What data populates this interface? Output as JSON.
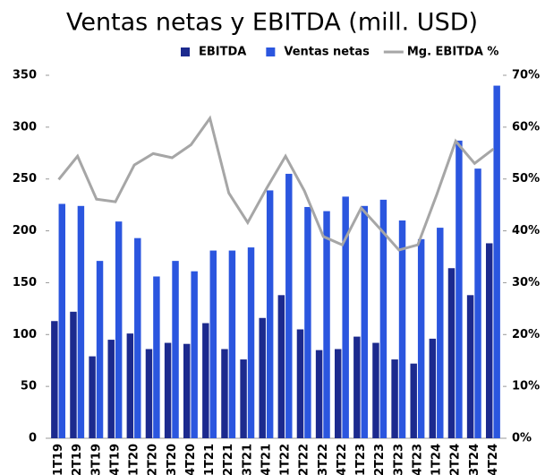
{
  "chart_data": {
    "type": "bar-line",
    "title": "Ventas netas y EBITDA (mill. USD)",
    "categories": [
      "1T19",
      "2T19",
      "3T19",
      "4T19",
      "1T20",
      "2T20",
      "3T20",
      "4T20",
      "1T21",
      "2T21",
      "3T21",
      "4T21",
      "1T22",
      "2T22",
      "3T22",
      "4T22",
      "1T23",
      "2T23",
      "3T23",
      "4T23",
      "1T24",
      "2T24",
      "3T24",
      "4T24"
    ],
    "series": [
      {
        "name": "EBITDA",
        "type": "bar",
        "color": "#1c2a8e",
        "values": [
          113,
          122,
          79,
          95,
          101,
          86,
          92,
          91,
          111,
          86,
          76,
          116,
          138,
          105,
          85,
          86,
          98,
          92,
          76,
          72,
          96,
          164,
          138,
          188
        ]
      },
      {
        "name": "Ventas netas",
        "type": "bar",
        "color": "#2b56df",
        "values": [
          226,
          224,
          171,
          209,
          193,
          156,
          171,
          161,
          181,
          181,
          184,
          239,
          255,
          223,
          219,
          233,
          224,
          230,
          210,
          192,
          203,
          287,
          260,
          340
        ]
      },
      {
        "name": "Mg. EBITDA %",
        "type": "line",
        "axis": "y2",
        "color": "#a6a6a6",
        "values": [
          49.9,
          54.4,
          46.1,
          45.6,
          52.7,
          54.9,
          54.1,
          56.6,
          61.7,
          47.3,
          41.6,
          48.2,
          54.4,
          47.7,
          38.9,
          37.3,
          44.4,
          40.4,
          36.3,
          37.3,
          47,
          57.3,
          53,
          55.8
        ]
      }
    ],
    "ylim": [
      0,
      350
    ],
    "yticks": [
      0,
      50,
      100,
      150,
      200,
      250,
      300,
      350
    ],
    "y2lim": [
      0,
      70
    ],
    "y2ticks": [
      {
        "value": 0,
        "label": "0%"
      },
      {
        "value": 10,
        "label": "10%"
      },
      {
        "value": 20,
        "label": "20%"
      },
      {
        "value": 30,
        "label": "30%"
      },
      {
        "value": 40,
        "label": "40%"
      },
      {
        "value": 50,
        "label": "50%"
      },
      {
        "value": 60,
        "label": "60%"
      },
      {
        "value": 70,
        "label": "70%"
      }
    ],
    "legend": "top"
  }
}
